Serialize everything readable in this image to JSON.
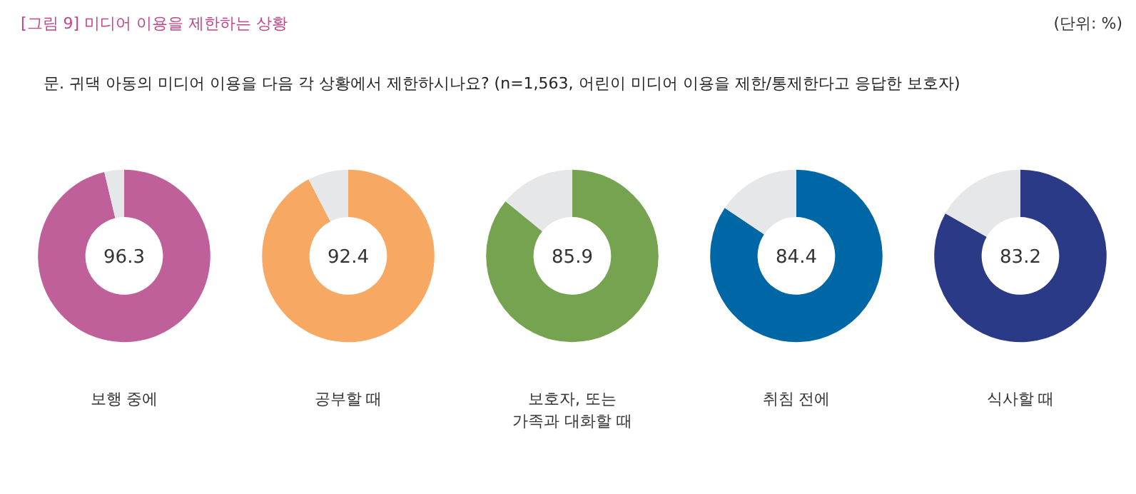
{
  "chart_data": [
    {
      "type": "donut",
      "title": "[그림 9] 미디어 이용을 제한하는 상황",
      "subtitle": "문. 귀댁 아동의 미디어 이용을 다음 각 상황에서 제한하시나요? (n=1,563, 어린이 미디어 이용을 제한/통제한다고 응답한 보호자)",
      "annotations": [
        "(단위: %)"
      ],
      "categories": [
        "보행 중에",
        null
      ],
      "values": [
        96.3,
        3.7
      ],
      "colors": [
        "#c0609a",
        "#e6e7e8"
      ],
      "value_labels": [
        "96.3",
        null
      ]
    },
    {
      "type": "donut",
      "categories": [
        "공부할 때",
        null
      ],
      "values": [
        92.4,
        7.6
      ],
      "colors": [
        "#f7a862",
        "#e6e7e8"
      ],
      "value_labels": [
        "92.4",
        null
      ]
    },
    {
      "type": "donut",
      "categories": [
        "보호자, 또는\n가족과 대화할 때",
        null
      ],
      "values": [
        85.9,
        14.1
      ],
      "colors": [
        "#76a34f",
        "#e6e7e8"
      ],
      "value_labels": [
        "85.9",
        null
      ]
    },
    {
      "type": "donut",
      "categories": [
        "취침 전에",
        null
      ],
      "values": [
        84.4,
        15.6
      ],
      "colors": [
        "#0067a6",
        "#e6e7e8"
      ],
      "value_labels": [
        "84.4",
        null
      ]
    },
    {
      "type": "donut",
      "categories": [
        "식사할 때",
        null
      ],
      "values": [
        83.2,
        16.8
      ],
      "colors": [
        "#2b3a87",
        "#e6e7e8"
      ],
      "value_labels": [
        "83.2",
        null
      ]
    }
  ]
}
